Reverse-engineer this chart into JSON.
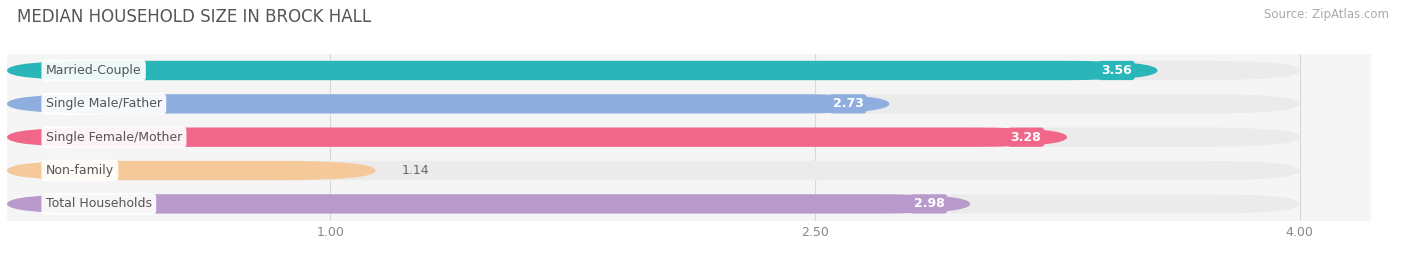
{
  "title": "MEDIAN HOUSEHOLD SIZE IN BROCK HALL",
  "source": "Source: ZipAtlas.com",
  "categories": [
    "Married-Couple",
    "Single Male/Father",
    "Single Female/Mother",
    "Non-family",
    "Total Households"
  ],
  "values": [
    3.56,
    2.73,
    3.28,
    1.14,
    2.98
  ],
  "bar_colors": [
    "#2ab5b9",
    "#8faee0",
    "#f0678a",
    "#f5c99a",
    "#b89bcc"
  ],
  "bar_bg_color": "#ebebeb",
  "xlim_min": 0,
  "xlim_max": 4.22,
  "xaxis_max": 4.0,
  "xticks": [
    1.0,
    2.5,
    4.0
  ],
  "xtick_labels": [
    "1.00",
    "2.50",
    "4.00"
  ],
  "label_fontsize": 9,
  "value_fontsize": 9,
  "title_fontsize": 12,
  "source_fontsize": 8.5,
  "bar_height": 0.58,
  "background_color": "#ffffff",
  "plot_bg_color": "#f5f5f5",
  "grid_color": "#d8d8d8",
  "label_text_color": "#555555",
  "value_color_inside": "#ffffff",
  "value_color_outside": "#666666"
}
